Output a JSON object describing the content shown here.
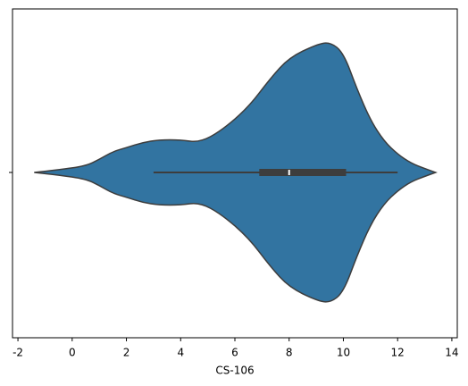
{
  "chart_data": {
    "type": "violin",
    "xlabel": "CS-106",
    "xlim": [
      -2.2,
      14.2
    ],
    "xticks": [
      -2,
      0,
      2,
      4,
      6,
      8,
      10,
      12,
      14
    ],
    "color": "#3274a1",
    "kde": {
      "x": [
        -1.4,
        -0.5,
        0.5,
        1.0,
        1.5,
        2.0,
        2.6,
        3.2,
        4.0,
        4.7,
        5.5,
        6.5,
        7.3,
        8.0,
        9.0,
        9.5,
        10.0,
        10.5,
        11.0,
        11.5,
        12.0,
        12.5,
        13.0,
        13.4
      ],
      "density": [
        0,
        0.02,
        0.05,
        0.1,
        0.16,
        0.19,
        0.23,
        0.25,
        0.25,
        0.23,
        0.32,
        0.5,
        0.72,
        0.88,
        0.98,
        1.0,
        0.92,
        0.64,
        0.4,
        0.24,
        0.14,
        0.07,
        0.03,
        0
      ]
    },
    "box": {
      "whisker_low": 3.0,
      "q1": 6.9,
      "median": 8.0,
      "q3": 10.1,
      "whisker_high": 12.0
    }
  }
}
